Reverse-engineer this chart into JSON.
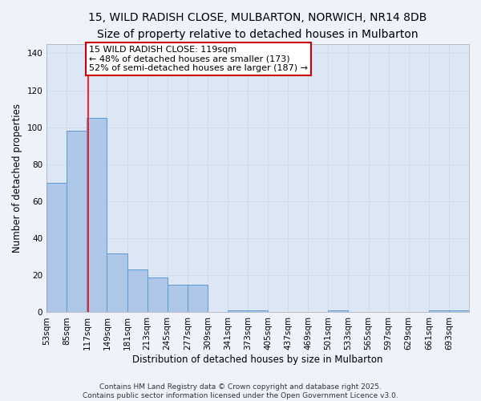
{
  "title1": "15, WILD RADISH CLOSE, MULBARTON, NORWICH, NR14 8DB",
  "title2": "Size of property relative to detached houses in Mulbarton",
  "xlabel": "Distribution of detached houses by size in Mulbarton",
  "ylabel": "Number of detached properties",
  "bin_labels": [
    "53sqm",
    "85sqm",
    "117sqm",
    "149sqm",
    "181sqm",
    "213sqm",
    "245sqm",
    "277sqm",
    "309sqm",
    "341sqm",
    "373sqm",
    "405sqm",
    "437sqm",
    "469sqm",
    "501sqm",
    "533sqm",
    "565sqm",
    "597sqm",
    "629sqm",
    "661sqm",
    "693sqm"
  ],
  "bin_values": [
    70,
    98,
    105,
    32,
    23,
    19,
    15,
    15,
    0,
    1,
    1,
    0,
    0,
    0,
    1,
    0,
    0,
    0,
    0,
    1,
    1
  ],
  "bin_width": 32,
  "bin_starts": [
    53,
    85,
    117,
    149,
    181,
    213,
    245,
    277,
    309,
    341,
    373,
    405,
    437,
    469,
    501,
    533,
    565,
    597,
    629,
    661,
    693
  ],
  "bar_color": "#aec6e8",
  "bar_edge_color": "#5b9bd5",
  "red_line_x": 119,
  "annotation_text": "15 WILD RADISH CLOSE: 119sqm\n← 48% of detached houses are smaller (173)\n52% of semi-detached houses are larger (187) →",
  "annotation_box_color": "#ffffff",
  "annotation_box_edge": "#cc0000",
  "ylim": [
    0,
    145
  ],
  "yticks": [
    0,
    20,
    40,
    60,
    80,
    100,
    120,
    140
  ],
  "grid_color": "#d0d8e8",
  "bg_color": "#dce6f5",
  "fig_bg_color": "#edf2fb",
  "footer_text": "Contains HM Land Registry data © Crown copyright and database right 2025.\nContains public sector information licensed under the Open Government Licence v3.0.",
  "title1_fontsize": 10,
  "title2_fontsize": 9,
  "axis_label_fontsize": 8.5,
  "tick_fontsize": 7.5,
  "annotation_fontsize": 8,
  "footer_fontsize": 6.5
}
